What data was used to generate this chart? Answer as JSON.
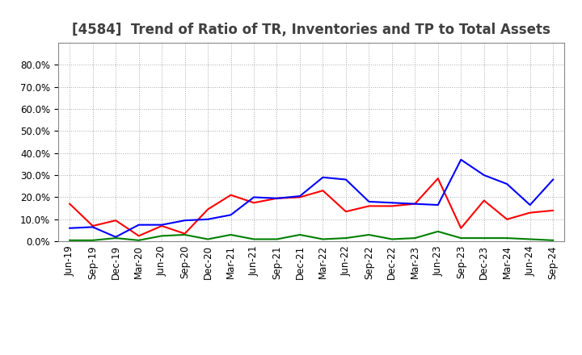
{
  "title": "[4584]  Trend of Ratio of TR, Inventories and TP to Total Assets",
  "labels": [
    "Jun-19",
    "Sep-19",
    "Dec-19",
    "Mar-20",
    "Jun-20",
    "Sep-20",
    "Dec-20",
    "Mar-21",
    "Jun-21",
    "Sep-21",
    "Dec-21",
    "Mar-22",
    "Jun-22",
    "Sep-22",
    "Dec-22",
    "Mar-23",
    "Jun-23",
    "Sep-23",
    "Dec-23",
    "Mar-24",
    "Jun-24",
    "Sep-24"
  ],
  "trade_receivables": [
    17.0,
    7.0,
    9.5,
    2.5,
    7.0,
    3.5,
    14.5,
    21.0,
    17.5,
    19.5,
    20.0,
    23.0,
    13.5,
    16.0,
    16.0,
    17.0,
    28.5,
    6.0,
    18.5,
    10.0,
    13.0,
    14.0
  ],
  "inventories": [
    6.0,
    6.5,
    2.0,
    7.5,
    7.5,
    9.5,
    10.0,
    12.0,
    20.0,
    19.5,
    20.5,
    29.0,
    28.0,
    18.0,
    17.5,
    17.0,
    16.5,
    37.0,
    30.0,
    26.0,
    16.5,
    28.0
  ],
  "trade_payables": [
    0.5,
    0.5,
    1.5,
    0.5,
    2.5,
    3.0,
    1.0,
    3.0,
    1.0,
    1.0,
    3.0,
    1.0,
    1.5,
    3.0,
    1.0,
    1.5,
    4.5,
    1.5,
    1.5,
    1.5,
    1.0,
    0.5
  ],
  "tr_color": "#FF0000",
  "inv_color": "#0000FF",
  "tp_color": "#008000",
  "ylim": [
    0.0,
    90.0
  ],
  "yticks": [
    0.0,
    10.0,
    20.0,
    30.0,
    40.0,
    50.0,
    60.0,
    70.0,
    80.0
  ],
  "background_color": "#FFFFFF",
  "plot_bg_color": "#FFFFFF",
  "grid_color": "#AAAAAA",
  "title_fontsize": 12,
  "legend_fontsize": 9,
  "tick_fontsize": 8.5
}
